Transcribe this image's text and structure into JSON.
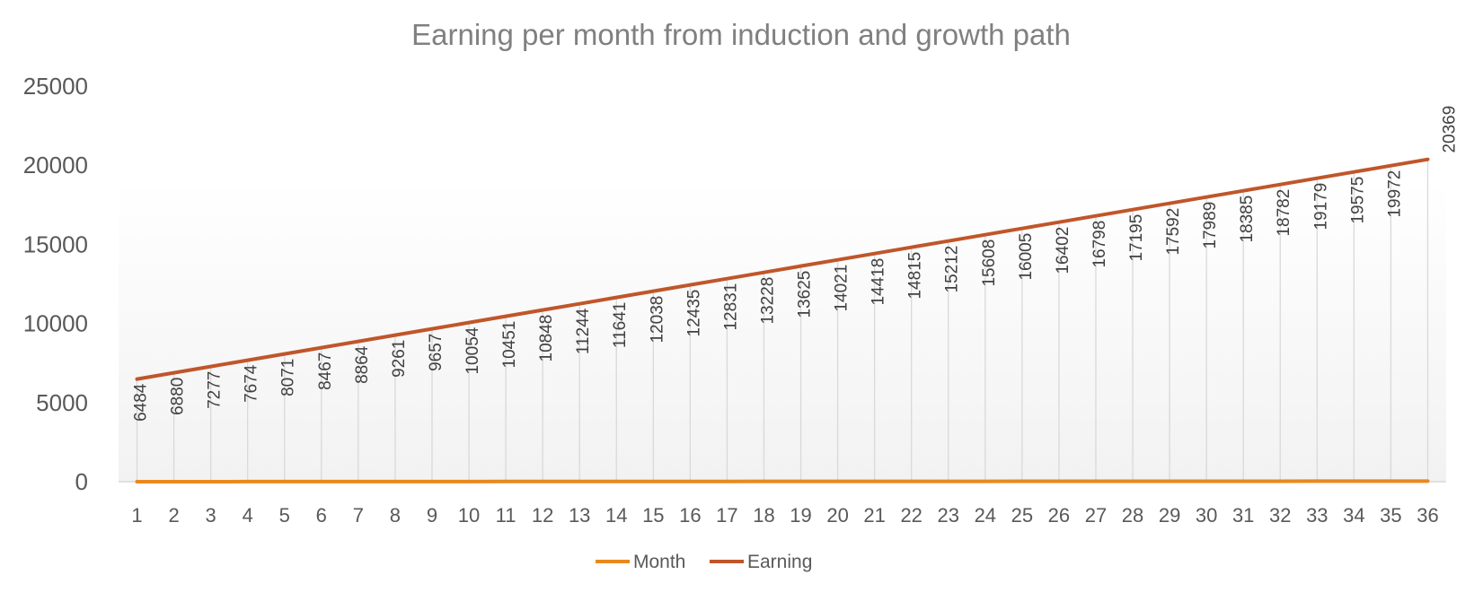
{
  "chart_data": {
    "type": "line",
    "title": "Earning per month from induction and growth path",
    "xlabel": "",
    "ylabel": "",
    "ylim": [
      0,
      25000
    ],
    "yticks": [
      0,
      5000,
      10000,
      15000,
      20000,
      25000
    ],
    "grid": "vertical drop lines",
    "legend_position": "bottom",
    "categories": [
      "1",
      "2",
      "3",
      "4",
      "5",
      "6",
      "7",
      "8",
      "9",
      "10",
      "11",
      "12",
      "13",
      "14",
      "15",
      "16",
      "17",
      "18",
      "19",
      "20",
      "21",
      "22",
      "23",
      "24",
      "25",
      "26",
      "27",
      "28",
      "29",
      "30",
      "31",
      "32",
      "33",
      "34",
      "35",
      "36"
    ],
    "series": [
      {
        "name": "Month",
        "color": "#E8891E",
        "values": [
          1,
          2,
          3,
          4,
          5,
          6,
          7,
          8,
          9,
          10,
          11,
          12,
          13,
          14,
          15,
          16,
          17,
          18,
          19,
          20,
          21,
          22,
          23,
          24,
          25,
          26,
          27,
          28,
          29,
          30,
          31,
          32,
          33,
          34,
          35,
          36
        ]
      },
      {
        "name": "Earning",
        "color": "#C0562A",
        "values": [
          6484,
          6880,
          7277,
          7674,
          8071,
          8467,
          8864,
          9261,
          9657,
          10054,
          10451,
          10848,
          11244,
          11641,
          12038,
          12435,
          12831,
          13228,
          13625,
          14021,
          14418,
          14815,
          15212,
          15608,
          16005,
          16402,
          16798,
          17195,
          17592,
          17989,
          18385,
          18782,
          19179,
          19575,
          19972,
          20369
        ],
        "data_labels": [
          "6484",
          "6880",
          "7277",
          "7674",
          "8071",
          "8467",
          "8864",
          "9261",
          "9657",
          "10054",
          "10451",
          "10848",
          "11244",
          "11641",
          "12038",
          "12435",
          "12831",
          "13228",
          "13625",
          "14021",
          "14418",
          "14815",
          "15212",
          "15608",
          "16005",
          "16402",
          "16798",
          "17195",
          "17592",
          "17989",
          "18385",
          "18782",
          "19179",
          "19575",
          "19972",
          "20369"
        ]
      }
    ]
  }
}
